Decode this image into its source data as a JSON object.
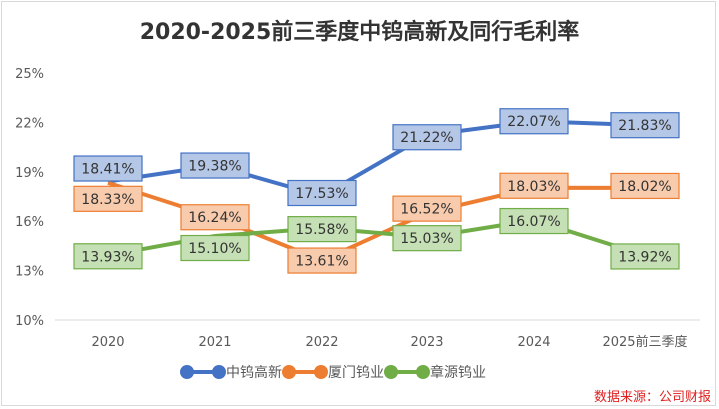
{
  "chart_data": {
    "type": "line",
    "title": "2020-2025前三季度中钨高新及同行毛利率",
    "categories": [
      "2020",
      "2021",
      "2022",
      "2023",
      "2024",
      "2025前三季度"
    ],
    "yticks": [
      "25%",
      "22%",
      "19%",
      "16%",
      "13%",
      "10%"
    ],
    "ylim": [
      10,
      25
    ],
    "series": [
      {
        "name": "中钨高新",
        "color": "#4472c4",
        "label_fill": "#b4c7e7",
        "values": [
          18.41,
          19.38,
          17.53,
          21.22,
          22.07,
          21.83
        ],
        "labels": [
          "18.41%",
          "19.38%",
          "17.53%",
          "21.22%",
          "22.07%",
          "21.83%"
        ]
      },
      {
        "name": "厦门钨业",
        "color": "#ed7d31",
        "label_fill": "#f8cbad",
        "values": [
          18.33,
          16.24,
          13.61,
          16.52,
          18.03,
          18.02
        ],
        "labels": [
          "18.33%",
          "16.24%",
          "13.61%",
          "16.52%",
          "18.03%",
          "18.02%"
        ]
      },
      {
        "name": "章源钨业",
        "color": "#70ad47",
        "label_fill": "#c5e0b4",
        "values": [
          13.93,
          15.1,
          15.58,
          15.03,
          16.07,
          13.92
        ],
        "labels": [
          "13.93%",
          "15.10%",
          "15.58%",
          "15.03%",
          "16.07%",
          "13.92%"
        ]
      }
    ],
    "legend": "bottom"
  },
  "source": "数据来源：公司财报"
}
